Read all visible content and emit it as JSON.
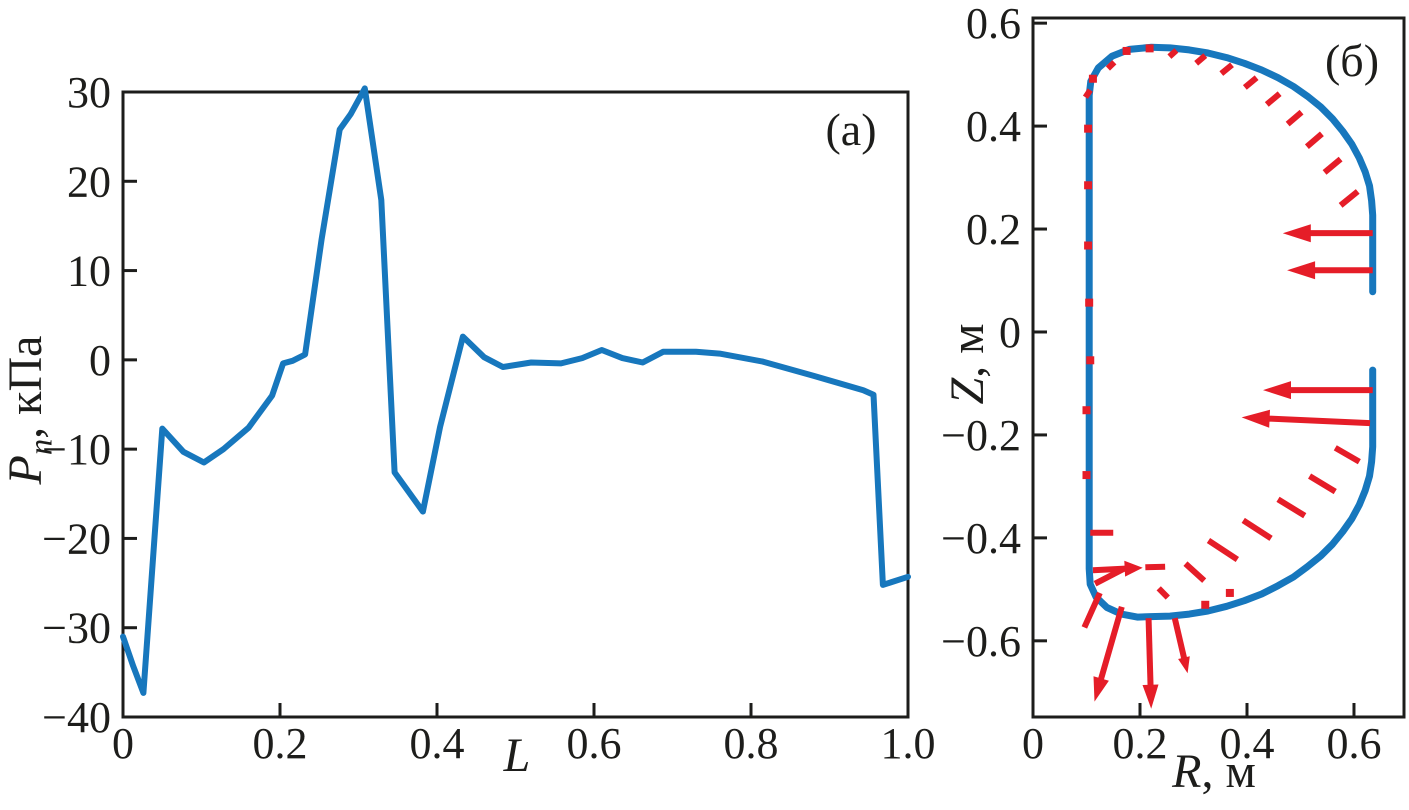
{
  "figure": {
    "description": "Two-panel scientific figure: (a) normal pressure profile along boundary coordinate L, (б) plasma boundary in R-Z plane with pressure force vectors",
    "colors": {
      "curve_blue": "#1777bd",
      "vector_red": "#e51d28",
      "axis_black": "#1d1d1b"
    }
  },
  "chart_data": [
    {
      "type": "line",
      "panel": "a",
      "title": "(a)",
      "xlabel": "L",
      "xlabel_parts": {
        "em": "L",
        "rest": ""
      },
      "ylabel": "Pn, кПа",
      "ylabel_parts": {
        "em": "P",
        "sub": "n",
        "rest": ", кПа"
      },
      "xlim": [
        0,
        1.0
      ],
      "ylim": [
        -40,
        30
      ],
      "grid": false,
      "xticks": [
        {
          "v": 0,
          "t": "0"
        },
        {
          "v": 0.2,
          "t": "0.2"
        },
        {
          "v": 0.4,
          "t": "0.4"
        },
        {
          "v": 0.6,
          "t": "0.6"
        },
        {
          "v": 0.8,
          "t": "0.8"
        },
        {
          "v": 1.0,
          "t": "1.0"
        }
      ],
      "yticks": [
        {
          "v": 30,
          "t": "30"
        },
        {
          "v": 20,
          "t": "20"
        },
        {
          "v": 10,
          "t": "10"
        },
        {
          "v": 0,
          "t": "0"
        },
        {
          "v": -10,
          "t": "−10"
        },
        {
          "v": -20,
          "t": "−20"
        },
        {
          "v": -30,
          "t": "−30"
        },
        {
          "v": -40,
          "t": "−40"
        }
      ],
      "x": [
        0.0,
        0.013,
        0.026,
        0.05,
        0.077,
        0.103,
        0.128,
        0.16,
        0.19,
        0.204,
        0.216,
        0.232,
        0.253,
        0.276,
        0.29,
        0.308,
        0.329,
        0.346,
        0.382,
        0.404,
        0.433,
        0.46,
        0.484,
        0.52,
        0.558,
        0.585,
        0.61,
        0.636,
        0.662,
        0.688,
        0.73,
        0.76,
        0.815,
        0.88,
        0.943,
        0.956,
        0.968,
        1.0
      ],
      "y": [
        -31.0,
        -34.3,
        -37.3,
        -7.7,
        -10.3,
        -11.5,
        -10.0,
        -7.6,
        -4.0,
        -0.4,
        -0.1,
        0.6,
        13.5,
        25.8,
        27.5,
        30.4,
        17.9,
        -12.6,
        -17.0,
        -7.5,
        2.6,
        0.3,
        -0.8,
        -0.3,
        -0.4,
        0.2,
        1.1,
        0.2,
        -0.3,
        0.9,
        0.9,
        0.7,
        -0.2,
        -1.8,
        -3.4,
        -3.9,
        -25.2,
        -24.3
      ]
    },
    {
      "type": "line",
      "panel": "b",
      "title": "(б)",
      "xlabel": "R, м",
      "xlabel_parts": {
        "em": "R",
        "rest": ", м"
      },
      "ylabel": "Z, м",
      "ylabel_parts": {
        "em": "Z",
        "sub": "",
        "rest": ", м"
      },
      "xlim": [
        0,
        0.6935
      ],
      "ylim": [
        -0.748,
        0.61
      ],
      "grid": false,
      "xticks": [
        {
          "v": 0,
          "t": "0"
        },
        {
          "v": 0.2,
          "t": "0.2"
        },
        {
          "v": 0.4,
          "t": "0.4"
        },
        {
          "v": 0.6,
          "t": "0.6"
        }
      ],
      "yticks": [
        {
          "v": 0.6,
          "t": "0.6"
        },
        {
          "v": 0.4,
          "t": "0.4"
        },
        {
          "v": 0.2,
          "t": "0.2"
        },
        {
          "v": 0,
          "t": "0"
        },
        {
          "v": -0.2,
          "t": "−0.2"
        },
        {
          "v": -0.4,
          "t": "−0.4"
        },
        {
          "v": -0.6,
          "t": "−0.6"
        }
      ],
      "boundary": [
        [
          0.635,
          0.078
        ],
        [
          0.635,
          0.227
        ],
        [
          0.633,
          0.255
        ],
        [
          0.629,
          0.284
        ],
        [
          0.621,
          0.311
        ],
        [
          0.61,
          0.338
        ],
        [
          0.596,
          0.365
        ],
        [
          0.579,
          0.39
        ],
        [
          0.56,
          0.414
        ],
        [
          0.538,
          0.437
        ],
        [
          0.513,
          0.458
        ],
        [
          0.487,
          0.477
        ],
        [
          0.458,
          0.494
        ],
        [
          0.4275,
          0.509
        ],
        [
          0.395,
          0.522
        ],
        [
          0.362,
          0.533
        ],
        [
          0.327,
          0.542
        ],
        [
          0.292,
          0.548
        ],
        [
          0.256,
          0.552
        ],
        [
          0.22,
          0.553
        ],
        [
          0.18,
          0.549
        ],
        [
          0.148,
          0.536
        ],
        [
          0.122,
          0.513
        ],
        [
          0.108,
          0.487
        ],
        [
          0.105,
          0.46
        ],
        [
          0.105,
          -0.46
        ],
        [
          0.107,
          -0.49
        ],
        [
          0.118,
          -0.515
        ],
        [
          0.138,
          -0.535
        ],
        [
          0.165,
          -0.548
        ],
        [
          0.195,
          -0.554
        ],
        [
          0.22,
          -0.553
        ],
        [
          0.256,
          -0.552
        ],
        [
          0.292,
          -0.548
        ],
        [
          0.327,
          -0.542
        ],
        [
          0.362,
          -0.533
        ],
        [
          0.395,
          -0.522
        ],
        [
          0.4275,
          -0.509
        ],
        [
          0.458,
          -0.493
        ],
        [
          0.487,
          -0.476
        ],
        [
          0.513,
          -0.456
        ],
        [
          0.538,
          -0.435
        ],
        [
          0.56,
          -0.412
        ],
        [
          0.579,
          -0.388
        ],
        [
          0.596,
          -0.363
        ],
        [
          0.61,
          -0.336
        ],
        [
          0.621,
          -0.308
        ],
        [
          0.629,
          -0.28
        ],
        [
          0.633,
          -0.252
        ],
        [
          0.635,
          -0.223
        ],
        [
          0.635,
          -0.074
        ]
      ],
      "vectors": [
        {
          "x1": 0.635,
          "z1": 0.192,
          "x2": 0.467,
          "z2": 0.192,
          "head": true,
          "hl": 28,
          "hw": 9
        },
        {
          "x1": 0.635,
          "z1": 0.12,
          "x2": 0.475,
          "z2": 0.12,
          "head": true,
          "hl": 28,
          "hw": 9
        },
        {
          "x1": 0.635,
          "z1": -0.113,
          "x2": 0.43,
          "z2": -0.113,
          "head": true,
          "hl": 28,
          "hw": 9
        },
        {
          "x1": 0.63,
          "z1": -0.177,
          "x2": 0.39,
          "z2": -0.166,
          "head": true,
          "hl": 28,
          "hw": 9
        },
        {
          "x1": 0.112,
          "z1": -0.463,
          "x2": 0.205,
          "z2": -0.458,
          "head": true,
          "hl": 18,
          "hw": 8
        },
        {
          "x1": 0.21,
          "z1": -0.457,
          "x2": 0.247,
          "z2": -0.456,
          "head": false
        },
        {
          "x1": 0.116,
          "z1": -0.489,
          "x2": 0.17,
          "z2": -0.46,
          "head": false
        },
        {
          "x1": 0.125,
          "z1": -0.507,
          "x2": 0.096,
          "z2": -0.574,
          "head": false
        },
        {
          "x1": 0.166,
          "z1": -0.534,
          "x2": 0.115,
          "z2": -0.718,
          "head": true,
          "hl": 24,
          "hw": 8
        },
        {
          "x1": 0.216,
          "z1": -0.556,
          "x2": 0.221,
          "z2": -0.732,
          "head": true,
          "hl": 24,
          "hw": 8
        },
        {
          "x1": 0.265,
          "z1": -0.556,
          "x2": 0.289,
          "z2": -0.663,
          "head": true,
          "hl": 16,
          "hw": 6
        },
        {
          "x1": 0.61,
          "z1": -0.252,
          "x2": 0.565,
          "z2": -0.225,
          "head": false
        },
        {
          "x1": 0.565,
          "z1": -0.31,
          "x2": 0.517,
          "z2": -0.28,
          "head": false
        },
        {
          "x1": 0.508,
          "z1": -0.357,
          "x2": 0.458,
          "z2": -0.325,
          "head": false
        },
        {
          "x1": 0.445,
          "z1": -0.401,
          "x2": 0.393,
          "z2": -0.366,
          "head": false
        },
        {
          "x1": 0.382,
          "z1": -0.442,
          "x2": 0.328,
          "z2": -0.405,
          "head": false
        },
        {
          "x1": 0.32,
          "z1": -0.483,
          "x2": 0.285,
          "z2": -0.45,
          "head": false
        },
        {
          "x1": 0.252,
          "z1": -0.516,
          "x2": 0.235,
          "z2": -0.498,
          "head": false
        },
        {
          "x1": 0.268,
          "z1": 0.547,
          "x2": 0.255,
          "z2": 0.535,
          "head": false
        },
        {
          "x1": 0.322,
          "z1": 0.537,
          "x2": 0.305,
          "z2": 0.522,
          "head": false
        },
        {
          "x1": 0.372,
          "z1": 0.519,
          "x2": 0.352,
          "z2": 0.502,
          "head": false
        },
        {
          "x1": 0.418,
          "z1": 0.494,
          "x2": 0.396,
          "z2": 0.475,
          "head": false
        },
        {
          "x1": 0.461,
          "z1": 0.463,
          "x2": 0.437,
          "z2": 0.442,
          "head": false
        },
        {
          "x1": 0.502,
          "z1": 0.427,
          "x2": 0.476,
          "z2": 0.404,
          "head": false
        },
        {
          "x1": 0.54,
          "z1": 0.385,
          "x2": 0.512,
          "z2": 0.36,
          "head": false
        },
        {
          "x1": 0.575,
          "z1": 0.336,
          "x2": 0.545,
          "z2": 0.31,
          "head": false
        },
        {
          "x1": 0.607,
          "z1": 0.273,
          "x2": 0.575,
          "z2": 0.246,
          "head": false
        },
        {
          "x1": 0.152,
          "z1": 0.524,
          "x2": 0.14,
          "z2": 0.512,
          "head": false
        },
        {
          "x1": 0.107,
          "z1": 0.47,
          "x2": 0.098,
          "z2": 0.456,
          "head": false
        },
        {
          "x1": 0.107,
          "z1": -0.39,
          "x2": 0.15,
          "z2": -0.39,
          "head": false
        }
      ],
      "dots": [
        [
          0.218,
          0.551
        ],
        [
          0.175,
          0.546
        ],
        [
          0.112,
          0.492
        ],
        [
          0.103,
          0.395
        ],
        [
          0.103,
          0.285
        ],
        [
          0.103,
          0.168
        ],
        [
          0.105,
          0.057
        ],
        [
          0.107,
          -0.055
        ],
        [
          0.1,
          -0.152
        ],
        [
          0.1,
          -0.278
        ],
        [
          0.322,
          -0.53
        ],
        [
          0.368,
          -0.507
        ]
      ]
    }
  ]
}
